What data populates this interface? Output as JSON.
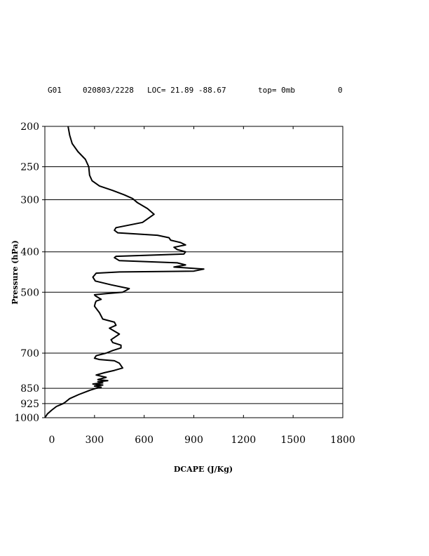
{
  "header": {
    "station": "G01",
    "datetime": "020803/2228",
    "location": "LOC= 21.89   -88.67",
    "top": "top=   0mb",
    "value": "0"
  },
  "chart_data": {
    "type": "line",
    "xlabel": "DCAPE (J/Kg)",
    "ylabel": "Pressure (hPa)",
    "xlim": [
      0,
      1800
    ],
    "ylim": [
      1000,
      200
    ],
    "yscale": "log",
    "x_ticks": [
      0,
      300,
      600,
      900,
      1200,
      1500,
      1800
    ],
    "x_tick_labels": [
      "0",
      "300",
      "600",
      "900",
      "1200",
      "1500",
      "1800"
    ],
    "y_ticks": [
      200,
      250,
      300,
      400,
      500,
      700,
      850,
      925,
      1000
    ],
    "y_tick_labels": [
      "200",
      "250",
      "300",
      "400",
      "500",
      "700",
      "850",
      "925",
      "1000"
    ],
    "grid": "horizontal lines at pressure levels 250, 300, 400, 500, 700, 850, 925",
    "line_color": "#000000",
    "series": [
      {
        "x": [
          140,
          150,
          165,
          200,
          245,
          265,
          270,
          285,
          330,
          410,
          480,
          530,
          560,
          620,
          660,
          590,
          430,
          420,
          440,
          680,
          750,
          760,
          820,
          850,
          780,
          800,
          850,
          840,
          430,
          420,
          450,
          800,
          850,
          780,
          960,
          900,
          450,
          310,
          290,
          305,
          400,
          510,
          490,
          470,
          370,
          300,
          305,
          340,
          310,
          305,
          300,
          330,
          350,
          420,
          430,
          390,
          450,
          400,
          410,
          435,
          460,
          460,
          410,
          370,
          310,
          300,
          330,
          420,
          450,
          470,
          420,
          360,
          310,
          370,
          320,
          380,
          320,
          350,
          290,
          350,
          300,
          340,
          310,
          270,
          205,
          150,
          120,
          110,
          70,
          40,
          15,
          0
        ],
        "y": [
          200,
          210,
          220,
          230,
          240,
          250,
          262,
          270,
          278,
          285,
          292,
          298,
          305,
          315,
          325,
          340,
          350,
          355,
          360,
          365,
          370,
          375,
          380,
          385,
          390,
          395,
          400,
          405,
          410,
          413,
          420,
          425,
          430,
          435,
          440,
          445,
          447,
          450,
          460,
          470,
          480,
          490,
          495,
          500,
          504,
          507,
          510,
          520,
          525,
          530,
          540,
          560,
          580,
          590,
          600,
          610,
          630,
          650,
          660,
          665,
          670,
          680,
          690,
          700,
          710,
          720,
          725,
          730,
          740,
          760,
          770,
          780,
          790,
          800,
          810,
          815,
          820,
          825,
          830,
          835,
          840,
          845,
          850,
          860,
          880,
          900,
          920,
          925,
          940,
          960,
          980,
          1000
        ]
      }
    ]
  }
}
